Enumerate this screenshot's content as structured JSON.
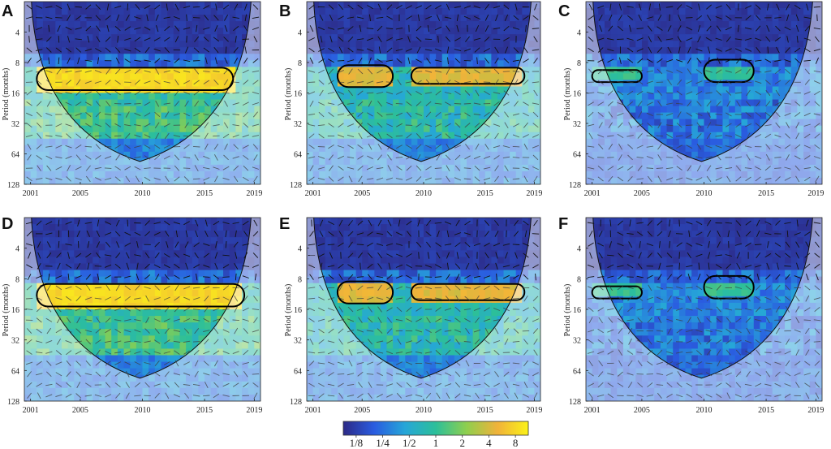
{
  "figure": {
    "type": "wavelet-coherence",
    "panel_count": 6,
    "layout": "2x3"
  },
  "chart_data": [
    {
      "type": "heatmap",
      "panel": "A",
      "ylabel": "Period (months)",
      "x_ticks": [
        "2001",
        "2005",
        "2010",
        "2015",
        "2019"
      ],
      "x_values": [
        2001,
        2005,
        2010,
        2015,
        2019
      ],
      "y_ticks": [
        "4",
        "8",
        "16",
        "32",
        "64",
        "128"
      ],
      "y_values": [
        4,
        8,
        16,
        32,
        64,
        128
      ],
      "xlim": [
        2000.5,
        2019.5
      ],
      "ylim": [
        2,
        128
      ],
      "yscale": "log2",
      "y_inverted": true,
      "significant_band": {
        "x_range": [
          2001.5,
          2017.3
        ],
        "period_range": [
          9,
          15
        ]
      },
      "pattern": "strong"
    },
    {
      "type": "heatmap",
      "panel": "B",
      "ylabel": "Period (months)",
      "x_ticks": [
        "2001",
        "2005",
        "2010",
        "2015",
        "2019"
      ],
      "x_values": [
        2001,
        2005,
        2010,
        2015,
        2019
      ],
      "y_ticks": [
        "4",
        "8",
        "16",
        "32",
        "64",
        "128"
      ],
      "y_values": [
        4,
        8,
        16,
        32,
        64,
        128
      ],
      "xlim": [
        2000.5,
        2019.5
      ],
      "ylim": [
        2,
        128
      ],
      "yscale": "log2",
      "y_inverted": true,
      "significant_regions": [
        {
          "x_range": [
            2003,
            2007.5
          ],
          "period_range": [
            8.5,
            14
          ]
        },
        {
          "x_range": [
            2009,
            2018.2
          ],
          "period_range": [
            9,
            13
          ]
        }
      ],
      "pattern": "medium"
    },
    {
      "type": "heatmap",
      "panel": "C",
      "ylabel": "Period (months)",
      "x_ticks": [
        "2001",
        "2005",
        "2010",
        "2015",
        "2019"
      ],
      "x_values": [
        2001,
        2005,
        2010,
        2015,
        2019
      ],
      "y_ticks": [
        "4",
        "8",
        "16",
        "32",
        "64",
        "128"
      ],
      "y_values": [
        4,
        8,
        16,
        32,
        64,
        128
      ],
      "xlim": [
        2000.5,
        2019.5
      ],
      "ylim": [
        2,
        128
      ],
      "yscale": "log2",
      "y_inverted": true,
      "significant_regions": [
        {
          "x_range": [
            2001,
            2005
          ],
          "period_range": [
            9.5,
            12.5
          ]
        },
        {
          "x_range": [
            2010,
            2014
          ],
          "period_range": [
            7.5,
            12.5
          ]
        }
      ],
      "pattern": "weak"
    },
    {
      "type": "heatmap",
      "panel": "D",
      "ylabel": "Period (months)",
      "x_ticks": [
        "2001",
        "2005",
        "2010",
        "2015",
        "2019"
      ],
      "x_values": [
        2001,
        2005,
        2010,
        2015,
        2019
      ],
      "y_ticks": [
        "4",
        "8",
        "16",
        "32",
        "64",
        "128"
      ],
      "y_values": [
        4,
        8,
        16,
        32,
        64,
        128
      ],
      "xlim": [
        2000.5,
        2019.5
      ],
      "ylim": [
        2,
        128
      ],
      "yscale": "log2",
      "y_inverted": true,
      "significant_band": {
        "x_range": [
          2001.5,
          2018.2
        ],
        "period_range": [
          9,
          15
        ]
      },
      "pattern": "strong"
    },
    {
      "type": "heatmap",
      "panel": "E",
      "ylabel": "Period (months)",
      "x_ticks": [
        "2001",
        "2005",
        "2010",
        "2015",
        "2019"
      ],
      "x_values": [
        2001,
        2005,
        2010,
        2015,
        2019
      ],
      "y_ticks": [
        "4",
        "8",
        "16",
        "32",
        "64",
        "128"
      ],
      "y_values": [
        4,
        8,
        16,
        32,
        64,
        128
      ],
      "xlim": [
        2000.5,
        2019.5
      ],
      "ylim": [
        2,
        128
      ],
      "yscale": "log2",
      "y_inverted": true,
      "significant_regions": [
        {
          "x_range": [
            2003,
            2007.5
          ],
          "period_range": [
            8.5,
            14
          ]
        },
        {
          "x_range": [
            2009,
            2018.2
          ],
          "period_range": [
            9,
            13
          ]
        }
      ],
      "pattern": "medium"
    },
    {
      "type": "heatmap",
      "panel": "F",
      "ylabel": "Period (months)",
      "x_ticks": [
        "2001",
        "2005",
        "2010",
        "2015",
        "2019"
      ],
      "x_values": [
        2001,
        2005,
        2010,
        2015,
        2019
      ],
      "y_ticks": [
        "4",
        "8",
        "16",
        "32",
        "64",
        "128"
      ],
      "y_values": [
        4,
        8,
        16,
        32,
        64,
        128
      ],
      "xlim": [
        2000.5,
        2019.5
      ],
      "ylim": [
        2,
        128
      ],
      "yscale": "log2",
      "y_inverted": true,
      "significant_regions": [
        {
          "x_range": [
            2001,
            2005
          ],
          "period_range": [
            9.5,
            12.5
          ]
        },
        {
          "x_range": [
            2010,
            2014
          ],
          "period_range": [
            7.5,
            12.5
          ]
        }
      ],
      "pattern": "weak"
    }
  ],
  "colorbar": {
    "labels": [
      "1/8",
      "1/4",
      "1/2",
      "1",
      "2",
      "4",
      "8"
    ],
    "values": [
      0.125,
      0.25,
      0.5,
      1,
      2,
      4,
      8
    ],
    "colors": [
      "#2c2a86",
      "#2a5ce0",
      "#26a6d8",
      "#2cbf9a",
      "#8fcf4e",
      "#f0b23a",
      "#fbf218"
    ]
  }
}
